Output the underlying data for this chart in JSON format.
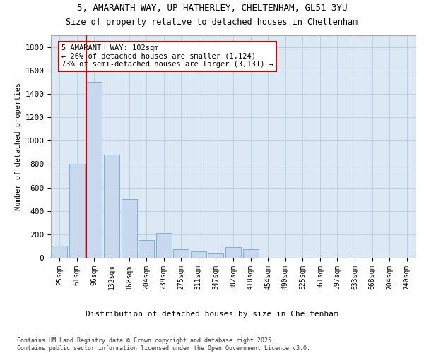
{
  "title_line1": "5, AMARANTH WAY, UP HATHERLEY, CHELTENHAM, GL51 3YU",
  "title_line2": "Size of property relative to detached houses in Cheltenham",
  "xlabel": "Distribution of detached houses by size in Cheltenham",
  "ylabel": "Number of detached properties",
  "categories": [
    "25sqm",
    "61sqm",
    "96sqm",
    "132sqm",
    "168sqm",
    "204sqm",
    "239sqm",
    "275sqm",
    "311sqm",
    "347sqm",
    "382sqm",
    "418sqm",
    "454sqm",
    "490sqm",
    "525sqm",
    "561sqm",
    "597sqm",
    "633sqm",
    "668sqm",
    "704sqm",
    "740sqm"
  ],
  "values": [
    105,
    800,
    1500,
    880,
    500,
    150,
    210,
    75,
    55,
    35,
    90,
    70,
    0,
    0,
    0,
    0,
    0,
    0,
    0,
    0,
    0
  ],
  "bar_color": "#c8d9ee",
  "bar_edge_color": "#7bafd4",
  "vline_color": "#cc0000",
  "annotation_box_color": "#cc0000",
  "annotation_line1": "5 AMARANTH WAY: 102sqm",
  "annotation_line2": "← 26% of detached houses are smaller (1,124)",
  "annotation_line3": "73% of semi-detached houses are larger (3,131) →",
  "ylim": [
    0,
    1900
  ],
  "yticks": [
    0,
    200,
    400,
    600,
    800,
    1000,
    1200,
    1400,
    1600,
    1800
  ],
  "background_color": "#ffffff",
  "plot_bg_color": "#dde8f5",
  "grid_color": "#b8cce4",
  "footnote_line1": "Contains HM Land Registry data © Crown copyright and database right 2025.",
  "footnote_line2": "Contains public sector information licensed under the Open Government Licence v3.0."
}
